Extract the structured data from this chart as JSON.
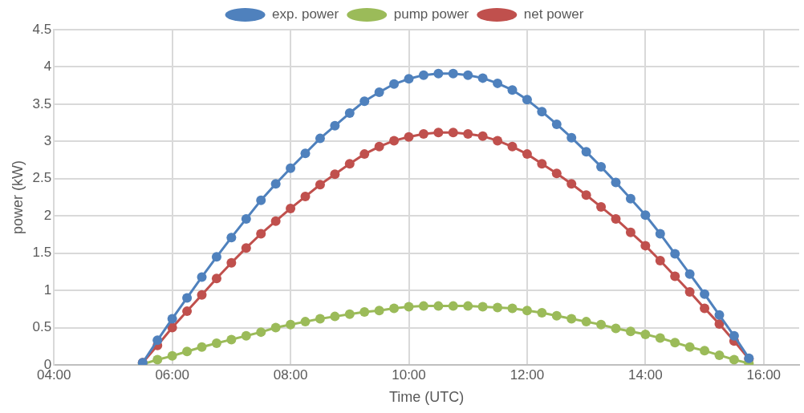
{
  "chart_data": {
    "type": "line",
    "xlabel": "Time (UTC)",
    "ylabel": "power (kW)",
    "x": [
      5.5,
      5.75,
      6,
      6.25,
      6.5,
      6.75,
      7,
      7.25,
      7.5,
      7.75,
      8,
      8.25,
      8.5,
      8.75,
      9,
      9.25,
      9.5,
      9.75,
      10,
      10.25,
      10.5,
      10.75,
      11,
      11.25,
      11.5,
      11.75,
      12,
      12.25,
      12.5,
      12.75,
      13,
      13.25,
      13.5,
      13.75,
      14,
      14.25,
      14.5,
      14.75,
      15,
      15.25,
      15.5,
      15.75
    ],
    "series": [
      {
        "name": "exp. power",
        "color": "#4f81bd",
        "values": [
          0.03,
          0.33,
          0.62,
          0.9,
          1.18,
          1.45,
          1.71,
          1.96,
          2.21,
          2.43,
          2.64,
          2.84,
          3.04,
          3.21,
          3.38,
          3.54,
          3.66,
          3.77,
          3.84,
          3.89,
          3.91,
          3.91,
          3.89,
          3.85,
          3.78,
          3.69,
          3.56,
          3.4,
          3.23,
          3.05,
          2.86,
          2.66,
          2.45,
          2.23,
          2.01,
          1.76,
          1.49,
          1.22,
          0.95,
          0.67,
          0.39,
          0.09
        ]
      },
      {
        "name": "pump power",
        "color": "#9bbb59",
        "values": [
          0.01,
          0.07,
          0.12,
          0.18,
          0.24,
          0.29,
          0.34,
          0.39,
          0.44,
          0.5,
          0.54,
          0.58,
          0.62,
          0.65,
          0.68,
          0.71,
          0.73,
          0.76,
          0.78,
          0.79,
          0.79,
          0.79,
          0.79,
          0.78,
          0.77,
          0.76,
          0.73,
          0.7,
          0.66,
          0.62,
          0.58,
          0.54,
          0.49,
          0.45,
          0.41,
          0.36,
          0.3,
          0.24,
          0.19,
          0.13,
          0.07,
          0.02
        ]
      },
      {
        "name": "net power",
        "color": "#c0504d",
        "values": [
          0.03,
          0.26,
          0.5,
          0.72,
          0.94,
          1.16,
          1.37,
          1.57,
          1.76,
          1.93,
          2.1,
          2.26,
          2.42,
          2.56,
          2.7,
          2.83,
          2.93,
          3.01,
          3.06,
          3.1,
          3.12,
          3.12,
          3.1,
          3.07,
          3.01,
          2.93,
          2.83,
          2.7,
          2.57,
          2.43,
          2.28,
          2.12,
          1.96,
          1.78,
          1.6,
          1.4,
          1.19,
          0.98,
          0.76,
          0.55,
          0.32,
          0.08
        ]
      }
    ],
    "xlim": [
      4,
      16.6
    ],
    "xticks": [
      {
        "value": 4,
        "label": "04:00"
      },
      {
        "value": 6,
        "label": "06:00"
      },
      {
        "value": 8,
        "label": "08:00"
      },
      {
        "value": 10,
        "label": "10:00"
      },
      {
        "value": 12,
        "label": "12:00"
      },
      {
        "value": 14,
        "label": "14:00"
      },
      {
        "value": 16,
        "label": "16:00"
      }
    ],
    "ylim": [
      0,
      4.5
    ],
    "yticks": [
      0,
      0.5,
      1,
      1.5,
      2,
      2.5,
      3,
      3.5,
      4,
      4.5
    ],
    "grid": true,
    "legend": "top",
    "marker": "circle",
    "line_style": "solid"
  }
}
